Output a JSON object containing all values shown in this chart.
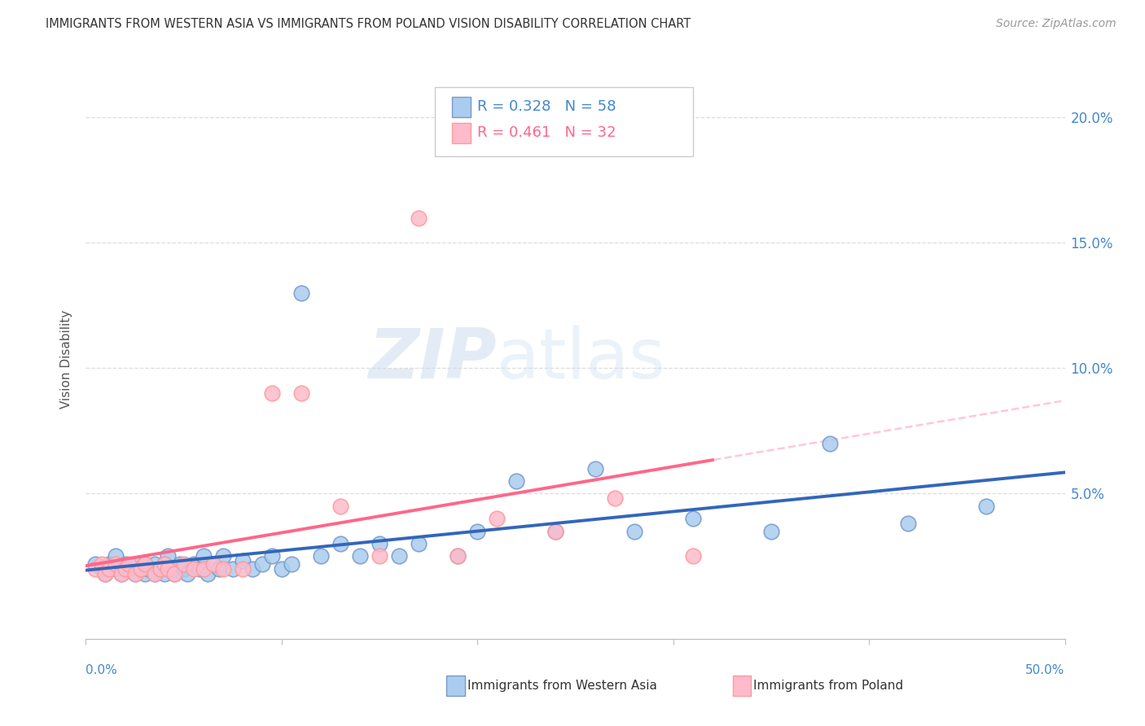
{
  "title": "IMMIGRANTS FROM WESTERN ASIA VS IMMIGRANTS FROM POLAND VISION DISABILITY CORRELATION CHART",
  "source": "Source: ZipAtlas.com",
  "ylabel": "Vision Disability",
  "xlim": [
    0.0,
    0.5
  ],
  "ylim": [
    -0.008,
    0.215
  ],
  "ytick_values": [
    0.0,
    0.05,
    0.1,
    0.15,
    0.2
  ],
  "ytick_labels_right": [
    "5.0%",
    "10.0%",
    "15.0%",
    "20.0%"
  ],
  "xtick_values": [
    0.0,
    0.1,
    0.2,
    0.3,
    0.4,
    0.5
  ],
  "label1": "Immigrants from Western Asia",
  "label2": "Immigrants from Poland",
  "color_blue_face": "#AACCEE",
  "color_blue_edge": "#7799CC",
  "color_blue_line": "#3366BB",
  "color_pink_face": "#FFBBCC",
  "color_pink_edge": "#FF9999",
  "color_pink_line": "#FF6688",
  "color_pink_dash": "#FFBBCC",
  "watermark_color": "#DDEEFF",
  "grid_color": "#DDDDDD",
  "r1_text": "R = 0.328",
  "n1_text": "N = 58",
  "r2_text": "R = 0.461",
  "n2_text": "N = 32",
  "wa_x": [
    0.005,
    0.008,
    0.01,
    0.012,
    0.015,
    0.015,
    0.018,
    0.02,
    0.022,
    0.025,
    0.025,
    0.028,
    0.03,
    0.03,
    0.032,
    0.035,
    0.035,
    0.038,
    0.04,
    0.04,
    0.042,
    0.045,
    0.045,
    0.048,
    0.05,
    0.052,
    0.055,
    0.058,
    0.06,
    0.062,
    0.065,
    0.068,
    0.07,
    0.075,
    0.08,
    0.085,
    0.09,
    0.095,
    0.1,
    0.105,
    0.11,
    0.12,
    0.13,
    0.14,
    0.15,
    0.16,
    0.17,
    0.19,
    0.2,
    0.22,
    0.24,
    0.26,
    0.28,
    0.31,
    0.35,
    0.38,
    0.42,
    0.46
  ],
  "wa_y": [
    0.022,
    0.02,
    0.018,
    0.022,
    0.02,
    0.025,
    0.018,
    0.022,
    0.02,
    0.018,
    0.022,
    0.02,
    0.018,
    0.022,
    0.02,
    0.018,
    0.022,
    0.02,
    0.018,
    0.022,
    0.025,
    0.02,
    0.018,
    0.022,
    0.02,
    0.018,
    0.022,
    0.02,
    0.025,
    0.018,
    0.022,
    0.02,
    0.025,
    0.02,
    0.023,
    0.02,
    0.022,
    0.025,
    0.02,
    0.022,
    0.13,
    0.025,
    0.03,
    0.025,
    0.03,
    0.025,
    0.03,
    0.025,
    0.035,
    0.055,
    0.035,
    0.06,
    0.035,
    0.04,
    0.035,
    0.07,
    0.038,
    0.045
  ],
  "pl_x": [
    0.005,
    0.008,
    0.01,
    0.012,
    0.015,
    0.018,
    0.02,
    0.022,
    0.025,
    0.028,
    0.03,
    0.035,
    0.038,
    0.04,
    0.042,
    0.045,
    0.05,
    0.055,
    0.06,
    0.065,
    0.07,
    0.08,
    0.095,
    0.11,
    0.13,
    0.15,
    0.17,
    0.19,
    0.21,
    0.24,
    0.27,
    0.31
  ],
  "pl_y": [
    0.02,
    0.022,
    0.018,
    0.02,
    0.022,
    0.018,
    0.02,
    0.022,
    0.018,
    0.02,
    0.022,
    0.018,
    0.02,
    0.022,
    0.02,
    0.018,
    0.022,
    0.02,
    0.02,
    0.022,
    0.02,
    0.02,
    0.09,
    0.09,
    0.045,
    0.025,
    0.16,
    0.025,
    0.04,
    0.035,
    0.048,
    0.025
  ]
}
